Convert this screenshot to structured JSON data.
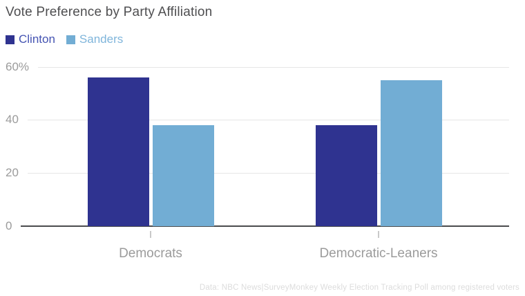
{
  "title": "Vote Preference by Party Affiliation",
  "legend": {
    "items": [
      {
        "label": "Clinton",
        "swatch_color": "#2f3390",
        "text_color": "#4453b2"
      },
      {
        "label": "Sanders",
        "swatch_color": "#72add4",
        "text_color": "#7fb5db"
      }
    ]
  },
  "footer": {
    "source_note": "Data: NBC News|SurveyMonkey Weekly Election Tracking Poll among registered voters"
  },
  "chart_data": {
    "type": "bar",
    "title": "Vote Preference by Party Affiliation",
    "categories": [
      "Democrats",
      "Democratic-Leaners"
    ],
    "series": [
      {
        "name": "Clinton",
        "color": "#2f3390",
        "values": [
          56,
          38
        ]
      },
      {
        "name": "Sanders",
        "color": "#72add4",
        "values": [
          38,
          55
        ]
      }
    ],
    "xlabel": "",
    "ylabel": "",
    "ylim": [
      0,
      60
    ],
    "y_ticks": [
      {
        "value": 0,
        "label": "0"
      },
      {
        "value": 20,
        "label": "20"
      },
      {
        "value": 40,
        "label": "40"
      },
      {
        "value": 60,
        "label": "60%"
      }
    ],
    "grid": true,
    "legend_position": "top-left",
    "source_note": "Data: NBC News|SurveyMonkey Weekly Election Tracking Poll among registered voters"
  }
}
